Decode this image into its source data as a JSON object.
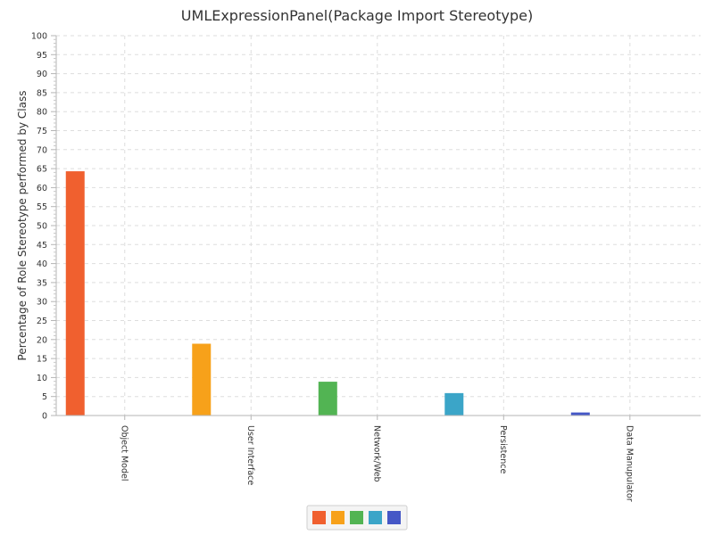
{
  "chart_data": {
    "type": "bar",
    "title": "UMLExpressionPanel(Package Import Stereotype)",
    "ylabel": "Percentage of Role Stereotype performed by Class",
    "xlabel": "",
    "categories": [
      "Object Model",
      "User Interface",
      "Network/Web",
      "Persistence",
      "Data Manupulator"
    ],
    "values": [
      64.3,
      18.9,
      8.9,
      5.9,
      0.8
    ],
    "colors": [
      "#f0602f",
      "#f7a11a",
      "#52b453",
      "#3ba5c8",
      "#4557c6"
    ],
    "ylim": [
      0,
      100
    ],
    "yticks": [
      "0",
      "5",
      "10",
      "15",
      "20",
      "25",
      "30",
      "35",
      "40",
      "45",
      "50",
      "55",
      "60",
      "65",
      "70",
      "75",
      "80",
      "85",
      "90",
      "95",
      "100"
    ],
    "grid": true,
    "legend_position": "bottom-center"
  }
}
